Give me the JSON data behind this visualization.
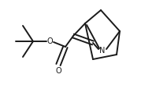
{
  "bg_color": "#ffffff",
  "line_color": "#1a1a1a",
  "lw": 1.4,
  "figsize": [
    1.98,
    1.18
  ],
  "dpi": 100,
  "font_size": 7.0,
  "xlim": [
    0,
    198
  ],
  "ylim": [
    0,
    118
  ]
}
